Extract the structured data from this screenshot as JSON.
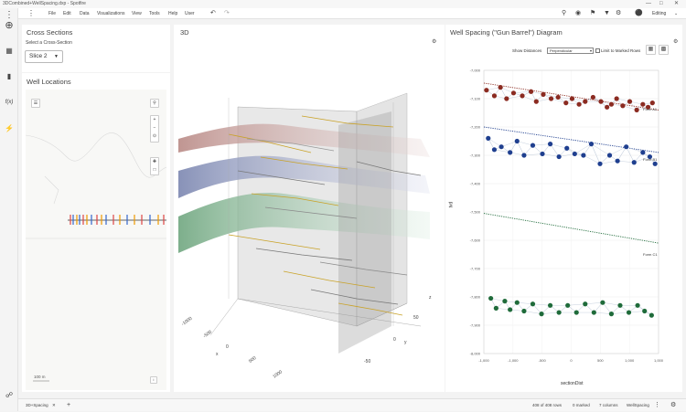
{
  "window": {
    "title": "3DCombined+WellSpacing.dxp - Spotfire"
  },
  "menu": {
    "items": [
      "File",
      "Edit",
      "Data",
      "Visualizations",
      "View",
      "Tools",
      "Help",
      "User"
    ],
    "mode": "Editing"
  },
  "cross_sections": {
    "title": "Cross Sections",
    "select_label": "Select a Cross-Section",
    "selected": "Slice 2"
  },
  "well_locations": {
    "title": "Well Locations",
    "scale_label": "100 m"
  },
  "view3d": {
    "title": "3D",
    "x_ticks": [
      "-1000",
      "-500",
      "0",
      "500",
      "1000"
    ],
    "y_ticks": [
      "50",
      "0",
      "-50"
    ],
    "axis_x": "x",
    "axis_y": "y",
    "axis_z": "z"
  },
  "gun_barrel": {
    "title": "Well Spacing (\"Gun Barrel\") Diagram",
    "show_distances_label": "Show Distances",
    "show_distances_value": "Perpendicular",
    "limit_label": "Limit to Marked Rows",
    "ylabel": "tvd",
    "xlabel": "sectionDist",
    "formation_labels": [
      "Form A1",
      "Form B1",
      "Form C1"
    ],
    "colors": {
      "a": "#8b2b21",
      "b": "#1f3f8f",
      "c": "#1f6b3a"
    }
  },
  "chart_data": {
    "type": "scatter",
    "title": "Well Spacing (\"Gun Barrel\") Diagram",
    "xlabel": "sectionDist",
    "ylabel": "tvd",
    "xlim": [
      -1000,
      1000
    ],
    "ylim": [
      -8000,
      -7000
    ],
    "x_ticks": [
      "-1,000",
      "-1,000",
      "-500",
      "0",
      "500",
      "1,000",
      "1,000"
    ],
    "y_ticks": [
      "-7,000",
      "-7,100",
      "-7,200",
      "-7,300",
      "-7,400",
      "-7,500",
      "-7,600",
      "-7,700",
      "-7,800",
      "-7,900",
      "-8,000"
    ],
    "formation_lines": [
      {
        "name": "Form A1",
        "x": [
          -1000,
          1000
        ],
        "y": [
          -7045,
          -7140
        ]
      },
      {
        "name": "Form B1",
        "x": [
          -1000,
          1000
        ],
        "y": [
          -7200,
          -7290
        ]
      },
      {
        "name": "Form C1",
        "x": [
          -1000,
          1000
        ],
        "y": [
          -7505,
          -7610
        ]
      }
    ],
    "series": [
      {
        "group": "A",
        "x": [
          -970,
          -880,
          -810,
          -740,
          -660,
          -560,
          -460,
          -400,
          -320,
          -230,
          -150,
          -60,
          10,
          90,
          160,
          250,
          340,
          410,
          460,
          520,
          590,
          670,
          750,
          820,
          880,
          930
        ],
        "y": [
          -7070,
          -7090,
          -7060,
          -7100,
          -7080,
          -7090,
          -7075,
          -7110,
          -7085,
          -7100,
          -7095,
          -7115,
          -7100,
          -7120,
          -7110,
          -7095,
          -7110,
          -7130,
          -7120,
          -7100,
          -7125,
          -7110,
          -7140,
          -7120,
          -7130,
          -7115
        ]
      },
      {
        "group": "B",
        "x": [
          -950,
          -880,
          -800,
          -700,
          -620,
          -540,
          -440,
          -330,
          -240,
          -140,
          -50,
          40,
          140,
          230,
          330,
          440,
          530,
          630,
          720,
          820,
          900,
          960
        ],
        "y": [
          -7240,
          -7280,
          -7270,
          -7290,
          -7250,
          -7300,
          -7265,
          -7295,
          -7260,
          -7305,
          -7275,
          -7295,
          -7300,
          -7260,
          -7330,
          -7300,
          -7320,
          -7270,
          -7325,
          -7290,
          -7305,
          -7330
        ]
      },
      {
        "group": "C",
        "x": [
          -920,
          -860,
          -760,
          -700,
          -620,
          -540,
          -440,
          -340,
          -240,
          -140,
          -40,
          60,
          160,
          260,
          360,
          460,
          560,
          660,
          760,
          840,
          920
        ],
        "y": [
          -7805,
          -7840,
          -7815,
          -7845,
          -7820,
          -7850,
          -7825,
          -7860,
          -7830,
          -7855,
          -7830,
          -7855,
          -7825,
          -7855,
          -7820,
          -7860,
          -7830,
          -7855,
          -7830,
          -7850,
          -7865
        ]
      }
    ],
    "grid": true
  },
  "status": {
    "tab": "3D+Spacing",
    "rows": "408 of 408 rows",
    "marked": "0 marked",
    "columns": "7 columns",
    "table": "WellSpacing"
  }
}
